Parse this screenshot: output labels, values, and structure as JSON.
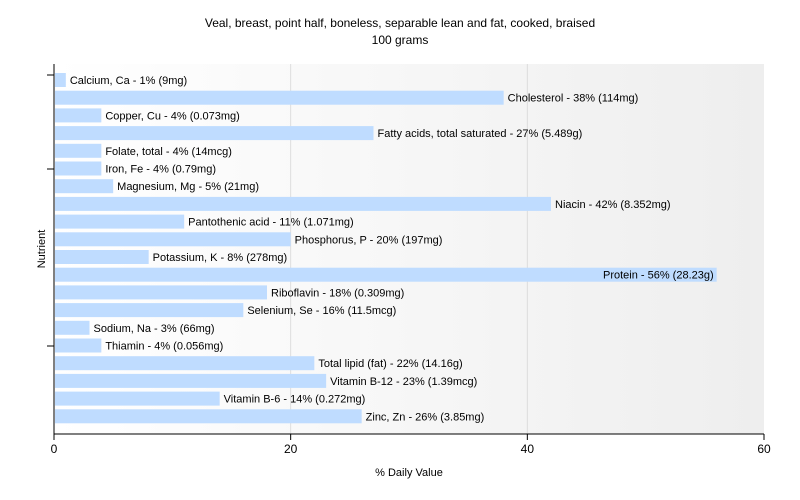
{
  "chart_data": {
    "type": "bar",
    "orientation": "horizontal",
    "title": "Veal, breast, point half, boneless, separable lean and fat, cooked, braised",
    "subtitle": "100 grams",
    "xlabel": "% Daily Value",
    "ylabel": "Nutrient",
    "xlim": [
      0,
      60
    ],
    "xticks": [
      "0",
      "20",
      "40",
      "60"
    ],
    "grid": true,
    "legend": "none",
    "bar_color": "#bfdcff",
    "categories": [
      "Calcium, Ca",
      "Cholesterol",
      "Copper, Cu",
      "Fatty acids, total saturated",
      "Folate, total",
      "Iron, Fe",
      "Magnesium, Mg",
      "Niacin",
      "Pantothenic acid",
      "Phosphorus, P",
      "Potassium, K",
      "Protein",
      "Riboflavin",
      "Selenium, Se",
      "Sodium, Na",
      "Thiamin",
      "Total lipid (fat)",
      "Vitamin B-12",
      "Vitamin B-6",
      "Zinc, Zn"
    ],
    "values": [
      1,
      38,
      4,
      27,
      4,
      4,
      5,
      42,
      11,
      20,
      8,
      56,
      18,
      16,
      3,
      4,
      22,
      23,
      14,
      26
    ],
    "labels": [
      "Calcium, Ca - 1% (9mg)",
      "Cholesterol - 38% (114mg)",
      "Copper, Cu - 4% (0.073mg)",
      "Fatty acids, total saturated - 27% (5.489g)",
      "Folate, total - 4% (14mcg)",
      "Iron, Fe - 4% (0.79mg)",
      "Magnesium, Mg - 5% (21mg)",
      "Niacin - 42% (8.352mg)",
      "Pantothenic acid - 11% (1.071mg)",
      "Phosphorus, P - 20% (197mg)",
      "Potassium, K - 8% (278mg)",
      "Protein - 56% (28.23g)",
      "Riboflavin - 18% (0.309mg)",
      "Selenium, Se - 16% (11.5mcg)",
      "Sodium, Na - 3% (66mg)",
      "Thiamin - 4% (0.056mg)",
      "Total lipid (fat) - 22% (14.16g)",
      "Vitamin B-12 - 23% (1.39mcg)",
      "Vitamin B-6 - 14% (0.272mg)",
      "Zinc, Zn - 26% (3.85mg)"
    ]
  }
}
